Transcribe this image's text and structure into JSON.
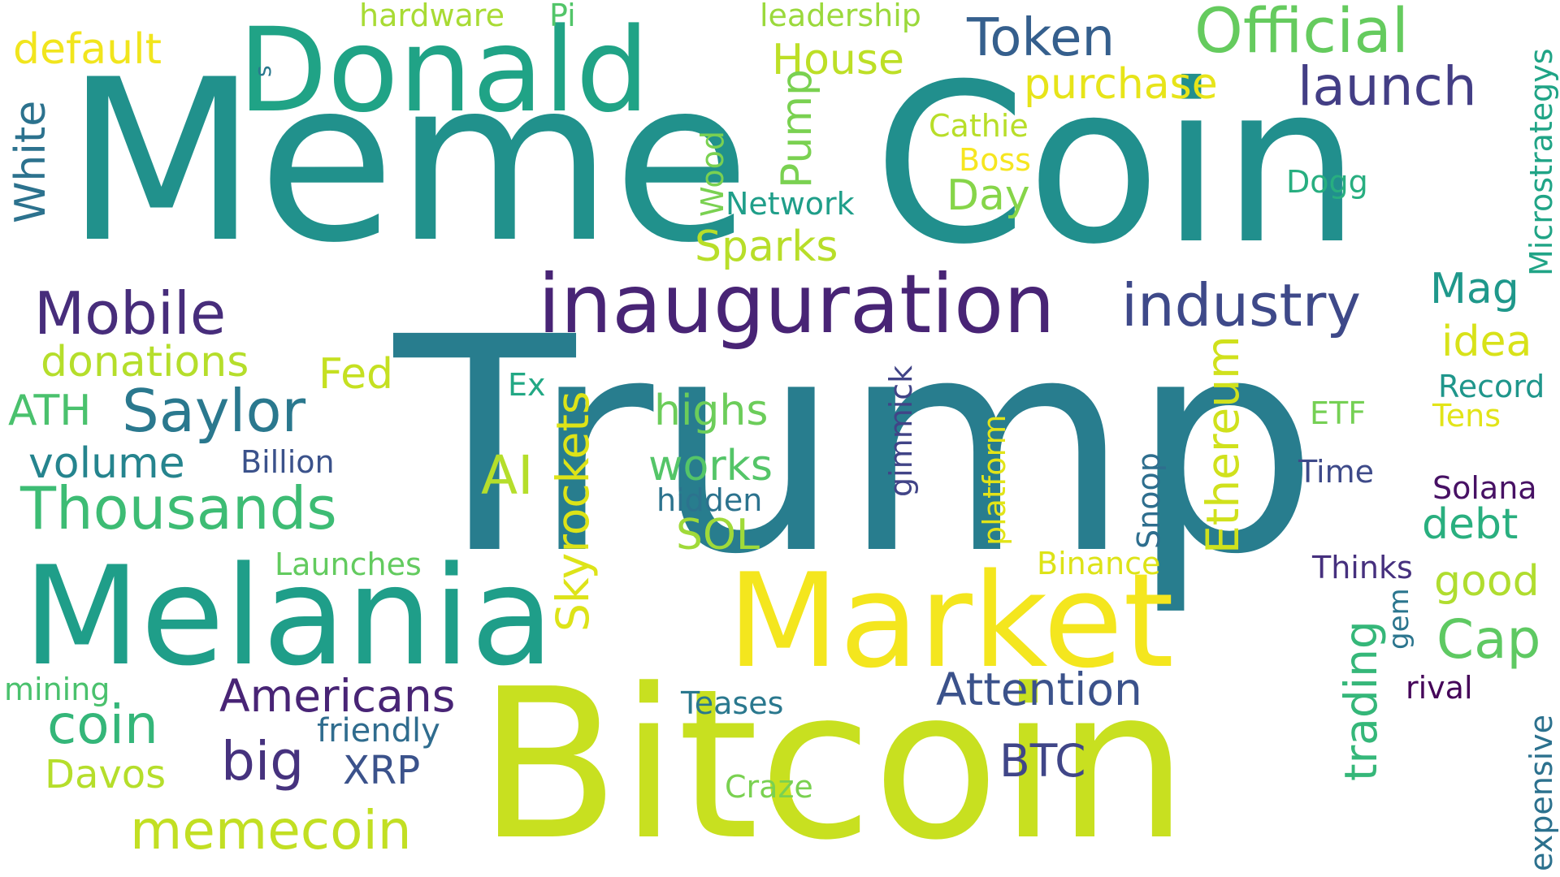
{
  "words": [
    {
      "text": "Trump",
      "color": "#287d8e"
    },
    {
      "text": "Coin",
      "color": "#218f8d"
    },
    {
      "text": "Meme",
      "color": "#21918c"
    },
    {
      "text": "Bitcoin",
      "color": "#c8e020"
    },
    {
      "text": "Melania",
      "color": "#1f9e89"
    },
    {
      "text": "Market",
      "color": "#f4e61e"
    },
    {
      "text": "Donald",
      "color": "#20a386"
    },
    {
      "text": "inauguration",
      "color": "#482475"
    },
    {
      "text": "Official",
      "color": "#65cb5e"
    },
    {
      "text": "Token",
      "color": "#355f8d"
    },
    {
      "text": "launch",
      "color": "#433e85"
    },
    {
      "text": "industry",
      "color": "#3e4989"
    },
    {
      "text": "Mobile",
      "color": "#472d7b"
    },
    {
      "text": "Saylor",
      "color": "#2a788e"
    },
    {
      "text": "Thousands",
      "color": "#3dbc74"
    },
    {
      "text": "memecoin",
      "color": "#c2df23"
    },
    {
      "text": "coin",
      "color": "#34b679"
    },
    {
      "text": "Americans",
      "color": "#482475"
    },
    {
      "text": "big",
      "color": "#46327e"
    },
    {
      "text": "AI",
      "color": "#b5de2b"
    },
    {
      "text": "Cap",
      "color": "#5ec962"
    },
    {
      "text": "Attention",
      "color": "#3b528b"
    },
    {
      "text": "BTC",
      "color": "#404688"
    },
    {
      "text": "Skyrockets",
      "color": "#dde318"
    },
    {
      "text": "Ethereum",
      "color": "#d0e11c"
    },
    {
      "text": "trading",
      "color": "#35b779"
    },
    {
      "text": "House",
      "color": "#bddf26"
    },
    {
      "text": "purchase",
      "color": "#e7e419"
    },
    {
      "text": "default",
      "color": "#f1e51d"
    },
    {
      "text": "White",
      "color": "#2c728e"
    },
    {
      "text": "donations",
      "color": "#b5de2b"
    },
    {
      "text": "Fed",
      "color": "#c5e021"
    },
    {
      "text": "ATH",
      "color": "#4ac16d"
    },
    {
      "text": "volume",
      "color": "#25848e"
    },
    {
      "text": "highs",
      "color": "#6ccd5a"
    },
    {
      "text": "works",
      "color": "#54c568"
    },
    {
      "text": "SOL",
      "color": "#a0da39"
    },
    {
      "text": "Sparks",
      "color": "#b8de29"
    },
    {
      "text": "Day",
      "color": "#86d549"
    },
    {
      "text": "Pump",
      "color": "#7ad151"
    },
    {
      "text": "Mag",
      "color": "#1f988b"
    },
    {
      "text": "idea",
      "color": "#d8e219"
    },
    {
      "text": "debt",
      "color": "#29af7f"
    },
    {
      "text": "good",
      "color": "#b0dd2f"
    },
    {
      "text": "Davos",
      "color": "#b5de2b"
    },
    {
      "text": "XRP",
      "color": "#3b528b"
    },
    {
      "text": "friendly",
      "color": "#2f6c8e"
    },
    {
      "text": "Teases",
      "color": "#2a788e"
    },
    {
      "text": "Craze",
      "color": "#7ad151"
    },
    {
      "text": "mining",
      "color": "#4ac16d"
    },
    {
      "text": "Launches",
      "color": "#63cb5f"
    },
    {
      "text": "Billion",
      "color": "#3b528b"
    },
    {
      "text": "Ex",
      "color": "#22a884"
    },
    {
      "text": "hidden",
      "color": "#2c738e"
    },
    {
      "text": "gimmick",
      "color": "#414487"
    },
    {
      "text": "platform",
      "color": "#e2e418"
    },
    {
      "text": "Snoop",
      "color": "#2e6e8e"
    },
    {
      "text": "Binance",
      "color": "#dde318"
    },
    {
      "text": "Time",
      "color": "#3e4a89"
    },
    {
      "text": "ETF",
      "color": "#75d054"
    },
    {
      "text": "Thinks",
      "color": "#46307e"
    },
    {
      "text": "gem",
      "color": "#2b758e"
    },
    {
      "text": "rival",
      "color": "#450559"
    },
    {
      "text": "expensive",
      "color": "#2c718e"
    },
    {
      "text": "Solana",
      "color": "#471164"
    },
    {
      "text": "Record",
      "color": "#1f968b"
    },
    {
      "text": "Tens",
      "color": "#e2e418"
    },
    {
      "text": "Microstrategys",
      "color": "#20a486"
    },
    {
      "text": "Dogg",
      "color": "#28ae80"
    },
    {
      "text": "Boss",
      "color": "#f6e620"
    },
    {
      "text": "Cathie",
      "color": "#b8de29"
    },
    {
      "text": "Network",
      "color": "#1f9e89"
    },
    {
      "text": "Wood",
      "color": "#7ad151"
    },
    {
      "text": "leadership",
      "color": "#9bd93c"
    },
    {
      "text": "Pi",
      "color": "#52c569"
    },
    {
      "text": "hardware",
      "color": "#a8db34"
    },
    {
      "text": "s",
      "color": "#2a788e"
    }
  ]
}
